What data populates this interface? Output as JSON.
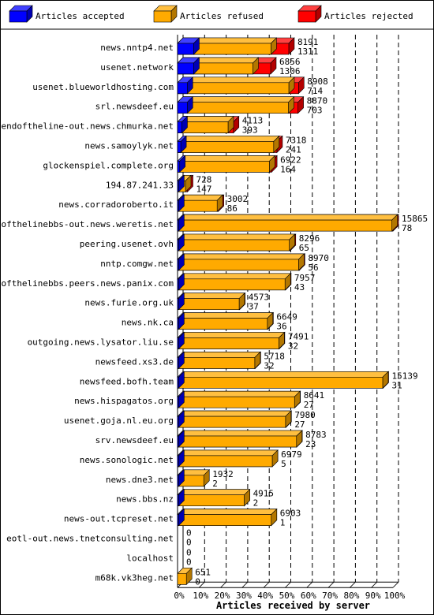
{
  "chart_data": {
    "type": "bar",
    "orientation": "horizontal",
    "stacked": true,
    "xlabel": "Articles received by server",
    "ylabel": "",
    "title": "",
    "xlim": [
      0,
      100
    ],
    "x_ticks": [
      "0%",
      "10%",
      "20%",
      "30%",
      "40%",
      "50%",
      "60%",
      "70%",
      "80%",
      "90%",
      "100%"
    ],
    "grid": true,
    "legend_position": "top",
    "max_total": 15865,
    "legend": [
      {
        "name": "Articles accepted",
        "color": "#0000ff"
      },
      {
        "name": "Articles refused",
        "color": "#ffaa00"
      },
      {
        "name": "Articles rejected",
        "color": "#ff0000"
      }
    ],
    "categories": [
      {
        "label": "news.nntp4.net",
        "total": 8191,
        "rejected": 1311,
        "accepted_pct": 7.5
      },
      {
        "label": "usenet.network",
        "total": 6856,
        "rejected": 1306,
        "accepted_pct": 7.5
      },
      {
        "label": "usenet.blueworldhosting.com",
        "total": 8908,
        "rejected": 714,
        "accepted_pct": 4.5
      },
      {
        "label": "srl.newsdeef.eu",
        "total": 8870,
        "rejected": 703,
        "accepted_pct": 4.5
      },
      {
        "label": "endoftheline-out.news.chmurka.net",
        "total": 4113,
        "rejected": 393,
        "accepted_pct": 2
      },
      {
        "label": "news.samoylyk.net",
        "total": 7318,
        "rejected": 241,
        "accepted_pct": 1.5
      },
      {
        "label": "glockenspiel.complete.org",
        "total": 6922,
        "rejected": 164,
        "accepted_pct": 1
      },
      {
        "label": "194.87.241.33",
        "total": 728,
        "rejected": 147,
        "accepted_pct": 0.5
      },
      {
        "label": "news.corradoroberto.it",
        "total": 3002,
        "rejected": 86,
        "accepted_pct": 0.5
      },
      {
        "label": "endofthelinebbs-out.news.weretis.net",
        "total": 15865,
        "rejected": 78,
        "accepted_pct": 0.5
      },
      {
        "label": "peering.usenet.ovh",
        "total": 8296,
        "rejected": 65,
        "accepted_pct": 0.5
      },
      {
        "label": "nntp.comgw.net",
        "total": 8970,
        "rejected": 56,
        "accepted_pct": 0.5
      },
      {
        "label": "endofthelinebbs.peers.news.panix.com",
        "total": 7957,
        "rejected": 43,
        "accepted_pct": 0.5
      },
      {
        "label": "news.furie.org.uk",
        "total": 4573,
        "rejected": 37,
        "accepted_pct": 0.5
      },
      {
        "label": "news.nk.ca",
        "total": 6649,
        "rejected": 36,
        "accepted_pct": 0.5
      },
      {
        "label": "outgoing.news.lysator.liu.se",
        "total": 7491,
        "rejected": 32,
        "accepted_pct": 0.5
      },
      {
        "label": "newsfeed.xs3.de",
        "total": 5718,
        "rejected": 32,
        "accepted_pct": 0.5
      },
      {
        "label": "newsfeed.bofh.team",
        "total": 15139,
        "rejected": 31,
        "accepted_pct": 0.5
      },
      {
        "label": "news.hispagatos.org",
        "total": 8641,
        "rejected": 27,
        "accepted_pct": 0.5
      },
      {
        "label": "usenet.goja.nl.eu.org",
        "total": 7980,
        "rejected": 27,
        "accepted_pct": 0.5
      },
      {
        "label": "srv.newsdeef.eu",
        "total": 8783,
        "rejected": 23,
        "accepted_pct": 0.5
      },
      {
        "label": "news.sonologic.net",
        "total": 6979,
        "rejected": 5,
        "accepted_pct": 0.5
      },
      {
        "label": "news.dne3.net",
        "total": 1932,
        "rejected": 2,
        "accepted_pct": 0.5
      },
      {
        "label": "news.bbs.nz",
        "total": 4915,
        "rejected": 2,
        "accepted_pct": 0.5
      },
      {
        "label": "news-out.tcpreset.net",
        "total": 6903,
        "rejected": 1,
        "accepted_pct": 0.5
      },
      {
        "label": "eotl-out.news.tnetconsulting.net",
        "total": 0,
        "rejected": 0,
        "accepted_pct": 0
      },
      {
        "label": "localhost",
        "total": 0,
        "rejected": 0,
        "accepted_pct": 0
      },
      {
        "label": "m68k.vk3heg.net",
        "total": 651,
        "rejected": 0,
        "accepted_pct": 0
      }
    ]
  }
}
